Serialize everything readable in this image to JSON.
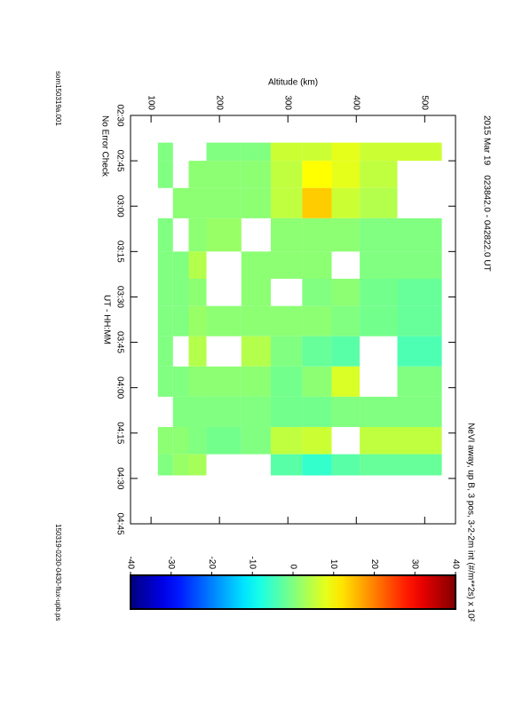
{
  "chart_data": {
    "type": "heatmap",
    "title": "2015 Mar 19    023842.0 - 042822.0 UT",
    "colorbar_label": "NeVI away, up B, 3 pos, 3-2-2m int (#/m**2s) x 10²",
    "xlabel": "UT - HH:MM",
    "ylabel": "Altitude (km)",
    "note": "No Error Check",
    "source_file": "som150319a.001",
    "output_file": "150319-0230-0430-flux-upb.ps",
    "xlim": [
      150,
      285
    ],
    "xticks": [
      {
        "value": 150,
        "label": "02:30"
      },
      {
        "value": 165,
        "label": "02:45"
      },
      {
        "value": 180,
        "label": "03:00"
      },
      {
        "value": 195,
        "label": "03:15"
      },
      {
        "value": 210,
        "label": "03:30"
      },
      {
        "value": 225,
        "label": "03:45"
      },
      {
        "value": 240,
        "label": "04:00"
      },
      {
        "value": 255,
        "label": "04:15"
      },
      {
        "value": 270,
        "label": "04:30"
      },
      {
        "value": 285,
        "label": "04:45"
      }
    ],
    "ylim": [
      70,
      545
    ],
    "yticks": [
      100,
      200,
      300,
      400,
      500
    ],
    "x_edges": [
      159,
      165,
      174,
      184,
      195,
      204,
      213,
      223,
      233,
      243,
      253,
      262,
      269
    ],
    "y_edges": [
      110,
      132,
      155,
      181,
      232,
      275,
      321,
      364,
      405,
      460,
      525
    ],
    "z": [
      [
        0,
        null,
        null,
        0,
        0,
        6,
        6,
        8,
        6,
        6
      ],
      [
        0,
        null,
        1,
        1,
        1,
        5,
        10,
        8,
        5,
        null
      ],
      [
        null,
        1,
        1,
        1,
        1,
        5,
        14,
        6,
        4,
        null
      ],
      [
        0,
        null,
        1,
        2,
        null,
        1,
        1,
        1,
        0,
        0
      ],
      [
        0,
        0,
        4,
        null,
        1,
        1,
        1,
        null,
        0,
        0
      ],
      [
        0,
        0,
        1,
        null,
        1,
        null,
        0,
        1,
        -1,
        -2
      ],
      [
        0,
        0,
        2,
        1,
        1,
        1,
        1,
        0,
        -1,
        -2
      ],
      [
        0,
        null,
        4,
        null,
        4,
        0,
        -2,
        -3,
        null,
        -4
      ],
      [
        0,
        0,
        1,
        1,
        1,
        -1,
        1,
        7,
        null,
        0
      ],
      [
        null,
        0,
        0,
        0,
        0,
        -1,
        -1,
        0,
        0,
        0
      ],
      [
        1,
        1,
        0,
        -1,
        0,
        5,
        6,
        null,
        5,
        5
      ],
      [
        0,
        2,
        3,
        null,
        null,
        -3,
        -6,
        -3,
        -2,
        -2
      ]
    ],
    "colormap": "jet",
    "cbar_lim": [
      -40,
      40
    ],
    "cbar_ticks": [
      -40,
      -30,
      -20,
      -10,
      0,
      10,
      20,
      30,
      40
    ]
  }
}
